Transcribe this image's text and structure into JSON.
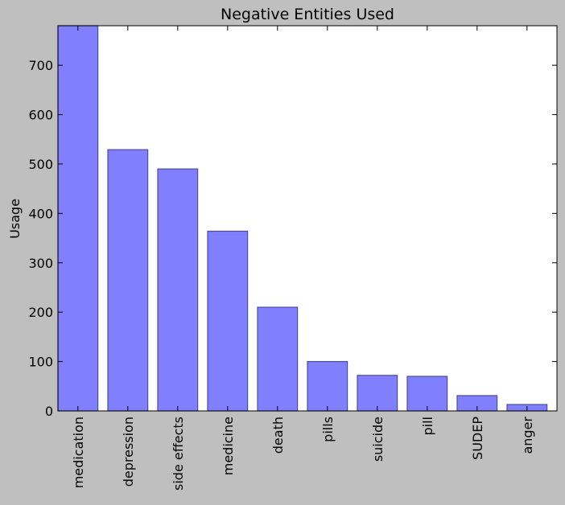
{
  "chart_data": {
    "type": "bar",
    "title": "Negative Entities Used",
    "xlabel": "",
    "ylabel": "Usage",
    "categories": [
      "medication",
      "depression",
      "side effects",
      "medicine",
      "death",
      "pills",
      "suicide",
      "pill",
      "SUDEP",
      "anger"
    ],
    "values": [
      780,
      529,
      490,
      364,
      210,
      100,
      72,
      70,
      31,
      13
    ],
    "ylim": [
      0,
      780
    ],
    "yticks": [
      0,
      100,
      200,
      300,
      400,
      500,
      600,
      700
    ],
    "grid": false,
    "legend": "none",
    "colors": {
      "bar_fill": "#8080ff",
      "bar_edge": "#4d4d99",
      "figure_background": "#bfbfbf",
      "axes_background": "#ffffff"
    }
  }
}
